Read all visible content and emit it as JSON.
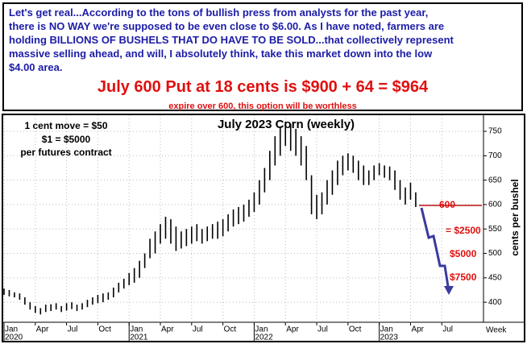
{
  "note": {
    "lines": [
      "Let's get real...According to the tons of bullish press from analysts for the past year,",
      "there is NO WAY we're supposed to be even close to $6.00. As I have noted, farmers are",
      "holding BILLIONS OF BUSHELS THAT DO HAVE TO BE SOLD...that collectively represent",
      "massive selling ahead, and will, I absolutely think, take this market down into the low",
      "$4.00 area."
    ],
    "headline": "July 600 Put at 18 cents is $900 + 64 = $964",
    "subline": "expire over 600, this option will be worthless"
  },
  "chart_data": {
    "type": "ohlc",
    "title": "July 2023 Corn (weekly)",
    "y_label": "cents per bushel",
    "x_label": "Week",
    "info_lines": [
      "1 cent move = $50",
      "$1 = $5000",
      "per futures contract"
    ],
    "annotations": [
      "600",
      "= $2500",
      "$5000",
      "$7500"
    ],
    "color": "#000000",
    "grid": true,
    "x": [
      0,
      0.5,
      1,
      1.5,
      2,
      2.5,
      3,
      3.5,
      4,
      4.5,
      5,
      5.5,
      6,
      6.5,
      7,
      7.5,
      8,
      8.5,
      9,
      9.5,
      10,
      10.5,
      11,
      11.5,
      12,
      12.5,
      13,
      13.5,
      14,
      14.5,
      15,
      15.5,
      16,
      16.5,
      17,
      17.5,
      18,
      18.5,
      19,
      19.5,
      20,
      20.5,
      21,
      21.5,
      22,
      22.5,
      23,
      23.5,
      24,
      24.5,
      25,
      25.5,
      26,
      26.5,
      27,
      27.5,
      28,
      28.5,
      29,
      29.5,
      30,
      30.5,
      31,
      31.5,
      32,
      32.5,
      33,
      33.5,
      34,
      34.5,
      35,
      35.5,
      36,
      36.5,
      37,
      37.5,
      38,
      38.5,
      39,
      39.5
    ],
    "high": [
      428,
      425,
      420,
      418,
      410,
      400,
      392,
      388,
      395,
      396,
      398,
      392,
      398,
      400,
      395,
      398,
      405,
      410,
      415,
      418,
      420,
      430,
      440,
      448,
      460,
      470,
      485,
      500,
      530,
      545,
      560,
      575,
      570,
      555,
      545,
      550,
      555,
      560,
      550,
      555,
      560,
      565,
      570,
      580,
      590,
      595,
      600,
      610,
      625,
      650,
      675,
      710,
      740,
      760,
      770,
      765,
      755,
      740,
      720,
      660,
      620,
      625,
      650,
      670,
      690,
      700,
      705,
      700,
      690,
      680,
      670,
      680,
      685,
      680,
      678,
      670,
      650,
      635,
      645,
      625
    ],
    "low": [
      415,
      412,
      410,
      405,
      395,
      385,
      378,
      375,
      380,
      382,
      385,
      380,
      383,
      386,
      382,
      385,
      390,
      395,
      398,
      400,
      405,
      410,
      420,
      428,
      435,
      440,
      450,
      470,
      490,
      500,
      520,
      530,
      520,
      505,
      510,
      515,
      520,
      525,
      520,
      525,
      530,
      530,
      535,
      545,
      555,
      560,
      565,
      575,
      585,
      600,
      625,
      650,
      680,
      700,
      720,
      710,
      700,
      680,
      650,
      580,
      570,
      580,
      600,
      620,
      640,
      660,
      670,
      665,
      650,
      640,
      640,
      650,
      660,
      655,
      650,
      630,
      610,
      600,
      610,
      595
    ],
    "xlim": [
      0,
      46
    ],
    "ylim": [
      359,
      783
    ],
    "yticks": [
      400,
      450,
      500,
      550,
      600,
      650,
      700,
      750
    ],
    "xticks": [
      {
        "value": 0,
        "label": "Jan"
      },
      {
        "value": 3,
        "label": "Apr"
      },
      {
        "value": 6,
        "label": "Jul"
      },
      {
        "value": 9,
        "label": "Oct"
      },
      {
        "value": 12,
        "label": "Jan"
      },
      {
        "value": 15,
        "label": "Apr"
      },
      {
        "value": 18,
        "label": "Jul"
      },
      {
        "value": 21,
        "label": "Oct"
      },
      {
        "value": 24,
        "label": "Jan"
      },
      {
        "value": 27,
        "label": "Apr"
      },
      {
        "value": 30,
        "label": "Jul"
      },
      {
        "value": 33,
        "label": "Oct"
      },
      {
        "value": 36,
        "label": "Jan"
      },
      {
        "value": 39,
        "label": "Apr"
      },
      {
        "value": 42,
        "label": "Jul"
      }
    ],
    "year_ticks": [
      {
        "value": 0,
        "label": "2020"
      },
      {
        "value": 12,
        "label": "2021"
      },
      {
        "value": 24,
        "label": "2022"
      },
      {
        "value": 36,
        "label": "2023"
      }
    ]
  }
}
